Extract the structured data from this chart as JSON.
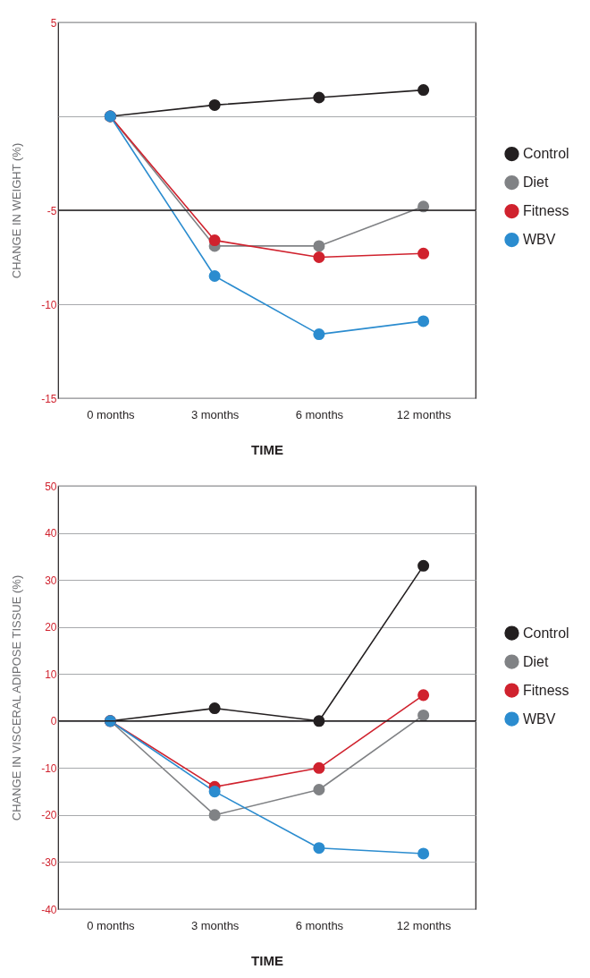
{
  "chart_data": [
    {
      "type": "line",
      "xlabel": "TIME",
      "ylabel": "CHANGE IN WEIGHT (%)",
      "categories": [
        "0 months",
        "3 months",
        "6 months",
        "12 months"
      ],
      "series": [
        {
          "name": "Control",
          "color": "#231f20",
          "values": [
            0,
            0.6,
            1.0,
            1.4
          ]
        },
        {
          "name": "Diet",
          "color": "#808285",
          "values": [
            0,
            -6.9,
            -6.9,
            -4.8
          ]
        },
        {
          "name": "Fitness",
          "color": "#d0222e",
          "values": [
            0,
            -6.6,
            -7.5,
            -7.3
          ]
        },
        {
          "name": "WBV",
          "color": "#2b8ccf",
          "values": [
            0,
            -8.5,
            -11.6,
            -10.9
          ]
        }
      ],
      "ylim": [
        -15,
        5
      ],
      "yticks": [
        5,
        {
          "value": 0,
          "label": null
        },
        -5,
        -10,
        -15
      ],
      "ref_lines": [
        {
          "axis": "y",
          "value": -5,
          "color": "#231f20"
        }
      ],
      "grid": "y",
      "legend": "right",
      "marker": "circle",
      "line_style": "solid"
    },
    {
      "type": "line",
      "xlabel": "TIME",
      "ylabel": "CHANGE IN VISCERAL ADIPOSE TISSUE (%)",
      "categories": [
        "0 months",
        "3 months",
        "6 months",
        "12 months"
      ],
      "series": [
        {
          "name": "Control",
          "color": "#231f20",
          "values": [
            0,
            2.7,
            0,
            33
          ]
        },
        {
          "name": "Diet",
          "color": "#808285",
          "values": [
            0,
            -20,
            -14.6,
            1.2
          ]
        },
        {
          "name": "Fitness",
          "color": "#d0222e",
          "values": [
            0,
            -14,
            -10,
            5.5
          ]
        },
        {
          "name": "WBV",
          "color": "#2b8ccf",
          "values": [
            0,
            -15,
            -27,
            -28.2
          ]
        }
      ],
      "ylim": [
        -40,
        50
      ],
      "yticks": [
        50,
        40,
        30,
        20,
        10,
        0,
        -10,
        -20,
        -30,
        -40
      ],
      "ref_lines": [
        {
          "axis": "y",
          "value": 0,
          "color": "#231f20"
        }
      ],
      "grid": "y",
      "legend": "right",
      "marker": "circle",
      "line_style": "solid"
    }
  ]
}
